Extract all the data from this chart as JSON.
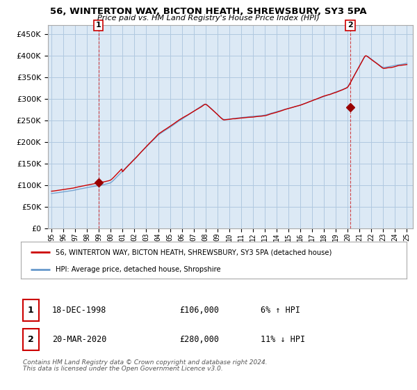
{
  "title_line1": "56, WINTERTON WAY, BICTON HEATH, SHREWSBURY, SY3 5PA",
  "title_line2": "Price paid vs. HM Land Registry's House Price Index (HPI)",
  "ytick_values": [
    0,
    50000,
    100000,
    150000,
    200000,
    250000,
    300000,
    350000,
    400000,
    450000
  ],
  "ylim": [
    0,
    470000
  ],
  "xlim_start": 1994.7,
  "xlim_end": 2025.5,
  "background_color": "#ffffff",
  "plot_bg_color": "#dce9f5",
  "grid_color": "#b0c8e0",
  "red_color": "#cc0000",
  "blue_color": "#6699cc",
  "sale1_x": 1998.96,
  "sale1_y": 106000,
  "sale2_x": 2020.22,
  "sale2_y": 280000,
  "legend_label_red": "56, WINTERTON WAY, BICTON HEATH, SHREWSBURY, SY3 5PA (detached house)",
  "legend_label_blue": "HPI: Average price, detached house, Shropshire",
  "table_row1_date": "18-DEC-1998",
  "table_row1_price": "£106,000",
  "table_row1_hpi": "6% ↑ HPI",
  "table_row2_date": "20-MAR-2020",
  "table_row2_price": "£280,000",
  "table_row2_hpi": "11% ↓ HPI",
  "footnote_line1": "Contains HM Land Registry data © Crown copyright and database right 2024.",
  "footnote_line2": "This data is licensed under the Open Government Licence v3.0.",
  "marker_color": "#990000",
  "border_color": "#aaaaaa"
}
